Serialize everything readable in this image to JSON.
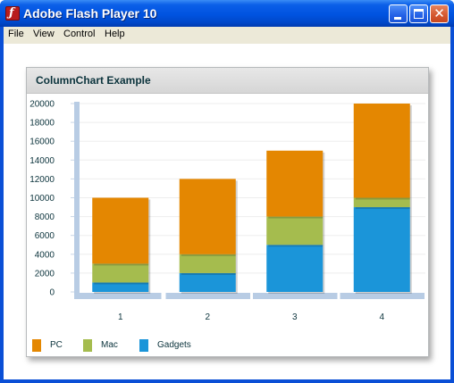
{
  "window": {
    "title": "Adobe Flash Player 10",
    "icon": "flash-icon",
    "controls": {
      "minimize": "minimize-icon",
      "maximize": "maximize-icon",
      "close": "close-icon"
    }
  },
  "menu": {
    "items": [
      "File",
      "View",
      "Control",
      "Help"
    ]
  },
  "panel": {
    "title": "ColumnChart Example"
  },
  "colors": {
    "pc": "#e48701",
    "mac": "#a5bc4e",
    "gadgets": "#1b95d9",
    "axis": "#b8cce4"
  },
  "chart_data": {
    "type": "bar",
    "stacked": true,
    "title": "",
    "xlabel": "",
    "ylabel": "",
    "categories": [
      "1",
      "2",
      "3",
      "4"
    ],
    "ylim": [
      0,
      20000
    ],
    "yticks": [
      "0",
      "2000",
      "4000",
      "6000",
      "8000",
      "10000",
      "12000",
      "14000",
      "16000",
      "18000",
      "20000"
    ],
    "series": [
      {
        "name": "Gadgets",
        "color": "#1b95d9",
        "values": [
          1000,
          2000,
          5000,
          9000
        ]
      },
      {
        "name": "Mac",
        "color": "#a5bc4e",
        "values": [
          2000,
          2000,
          3000,
          1000
        ]
      },
      {
        "name": "PC",
        "color": "#e48701",
        "values": [
          7000,
          8000,
          7000,
          10000
        ]
      }
    ],
    "legend": [
      "PC",
      "Mac",
      "Gadgets"
    ],
    "legend_position": "bottom-left",
    "grid": true
  }
}
